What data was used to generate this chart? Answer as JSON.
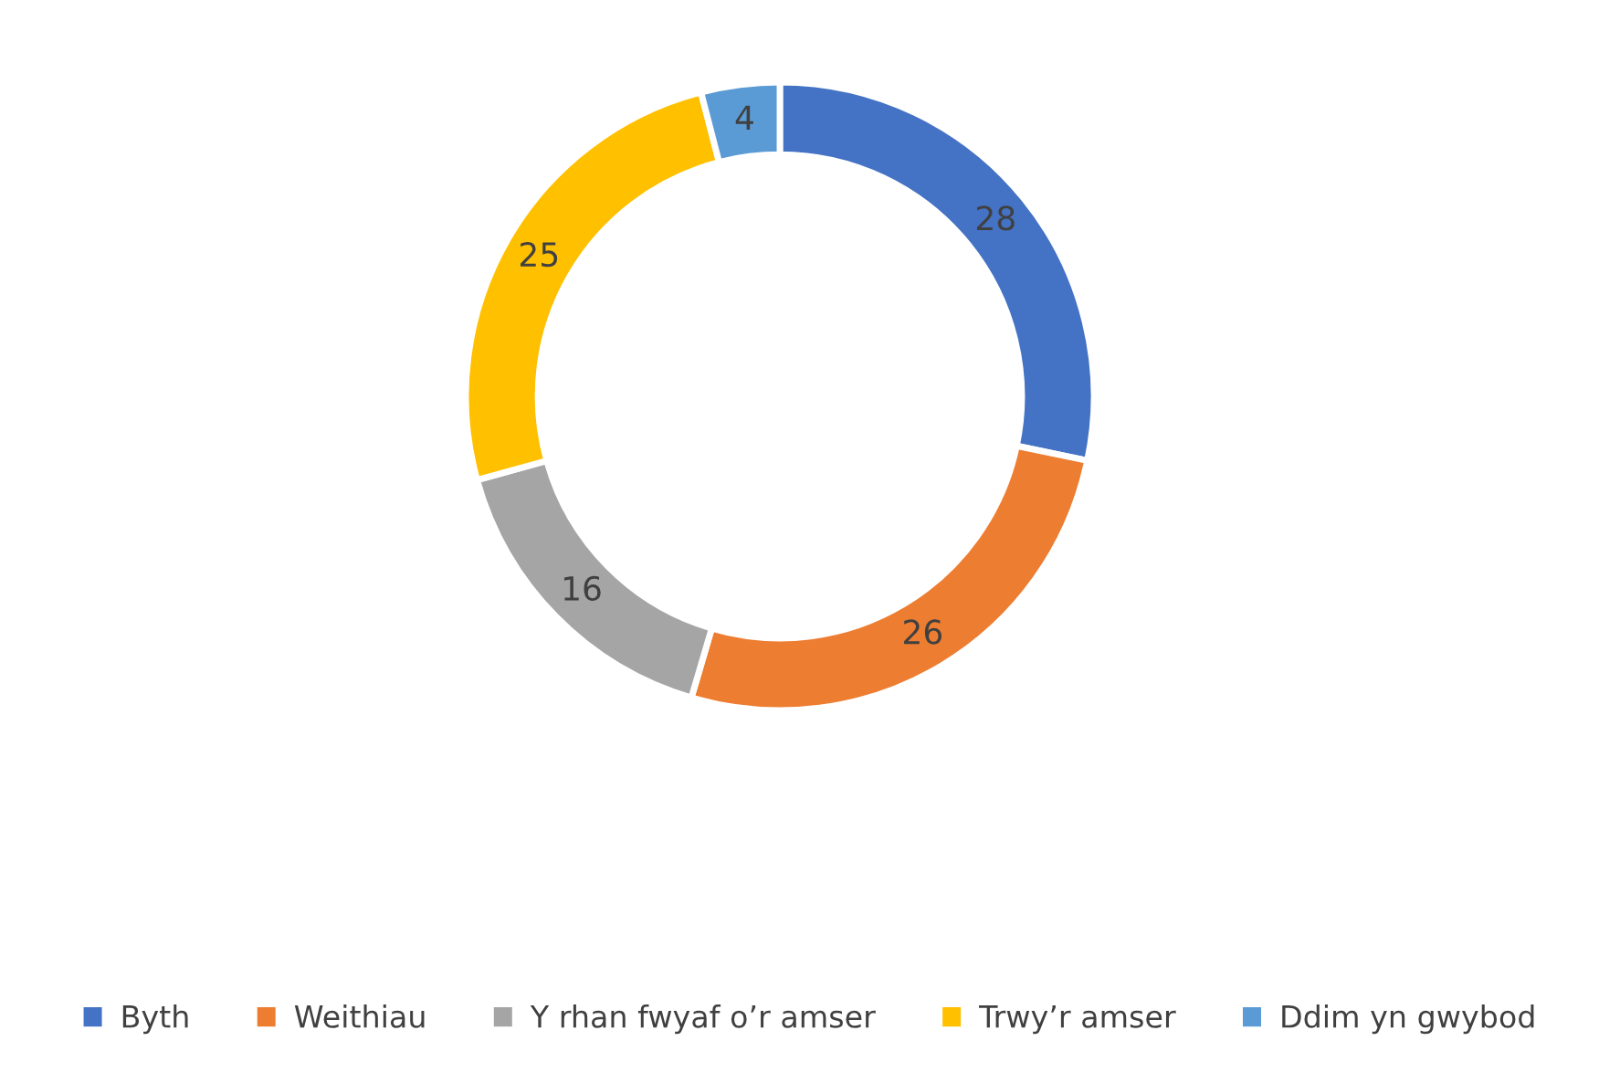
{
  "chart_data": {
    "type": "donut",
    "categories": [
      "Byth",
      "Weithiau",
      "Y rhan fwyaf o’r amser",
      "Trwy’r amser",
      "Ddim yn gwybod"
    ],
    "values": [
      28,
      26,
      16,
      25,
      4
    ],
    "colors": [
      "#4472c4",
      "#ed7d31",
      "#a5a5a5",
      "#ffc000",
      "#5b9bd5"
    ],
    "data_labels": true,
    "legend": "bottom"
  }
}
